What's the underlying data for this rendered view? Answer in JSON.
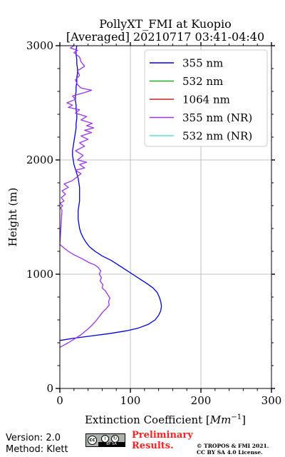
{
  "chart_data": {
    "type": "line",
    "title": "PollyXT_FMI at Kuopio",
    "subtitle": "[Averaged] 20210717 03:41-04:40",
    "xlabel_prefix": "Extinction Coefficient [",
    "xlabel_unit": "Mm",
    "xlabel_exponent": "−1",
    "xlabel_suffix": "]",
    "ylabel": "Height (m)",
    "xlim": [
      0,
      300
    ],
    "ylim": [
      0,
      3000
    ],
    "xticks": [
      0,
      100,
      200,
      300
    ],
    "yticks": [
      0,
      1000,
      2000,
      3000
    ],
    "grid": true,
    "legend_position": "top-right",
    "series": [
      {
        "name": "355 nm",
        "color": "#0000dd",
        "points": [
          [
            0,
            420
          ],
          [
            20,
            440
          ],
          [
            45,
            460
          ],
          [
            70,
            480
          ],
          [
            95,
            505
          ],
          [
            112,
            530
          ],
          [
            125,
            560
          ],
          [
            135,
            600
          ],
          [
            140,
            640
          ],
          [
            143,
            680
          ],
          [
            144,
            720
          ],
          [
            143,
            760
          ],
          [
            141,
            800
          ],
          [
            138,
            840
          ],
          [
            132,
            880
          ],
          [
            123,
            920
          ],
          [
            113,
            960
          ],
          [
            103,
            1000
          ],
          [
            93,
            1040
          ],
          [
            83,
            1080
          ],
          [
            73,
            1120
          ],
          [
            60,
            1160
          ],
          [
            50,
            1200
          ],
          [
            42,
            1240
          ],
          [
            37,
            1280
          ],
          [
            33,
            1320
          ],
          [
            30,
            1360
          ],
          [
            28,
            1400
          ],
          [
            27,
            1440
          ],
          [
            26,
            1480
          ],
          [
            26,
            1520
          ],
          [
            26,
            1560
          ],
          [
            27,
            1600
          ],
          [
            28,
            1640
          ],
          [
            28,
            1680
          ],
          [
            28,
            1720
          ],
          [
            28,
            1760
          ],
          [
            27,
            1800
          ],
          [
            26,
            1840
          ],
          [
            24,
            1880
          ],
          [
            22,
            1920
          ],
          [
            20,
            1960
          ],
          [
            19,
            2000
          ],
          [
            18,
            2040
          ],
          [
            18,
            2080
          ],
          [
            19,
            2120
          ],
          [
            20,
            2160
          ],
          [
            21,
            2200
          ],
          [
            22,
            2240
          ],
          [
            23,
            2280
          ],
          [
            23,
            2320
          ],
          [
            24,
            2360
          ],
          [
            24,
            2400
          ],
          [
            23,
            2440
          ],
          [
            23,
            2480
          ],
          [
            22,
            2520
          ],
          [
            22,
            2560
          ],
          [
            23,
            2600
          ],
          [
            23,
            2640
          ],
          [
            24,
            2680
          ],
          [
            24,
            2720
          ],
          [
            25,
            2760
          ],
          [
            25,
            2800
          ],
          [
            24,
            2840
          ],
          [
            24,
            2880
          ],
          [
            23,
            2920
          ],
          [
            23,
            2960
          ],
          [
            24,
            3000
          ]
        ]
      },
      {
        "name": "532 nm",
        "color": "#22aa22",
        "points": []
      },
      {
        "name": "1064 nm",
        "color": "#cc2222",
        "points": []
      },
      {
        "name": "355 nm (NR)",
        "color": "#9933ee",
        "points": [
          [
            0,
            360
          ],
          [
            6,
            380
          ],
          [
            12,
            400
          ],
          [
            20,
            430
          ],
          [
            30,
            470
          ],
          [
            38,
            510
          ],
          [
            45,
            550
          ],
          [
            51,
            590
          ],
          [
            56,
            630
          ],
          [
            61,
            670
          ],
          [
            66,
            700
          ],
          [
            70,
            730
          ],
          [
            69,
            760
          ],
          [
            71,
            790
          ],
          [
            68,
            820
          ],
          [
            65,
            850
          ],
          [
            60,
            880
          ],
          [
            61,
            910
          ],
          [
            57,
            940
          ],
          [
            59,
            970
          ],
          [
            56,
            1000
          ],
          [
            58,
            1030
          ],
          [
            54,
            1060
          ],
          [
            50,
            1080
          ],
          [
            42,
            1100
          ],
          [
            30,
            1140
          ],
          [
            20,
            1170
          ],
          [
            12,
            1200
          ],
          [
            6,
            1230
          ],
          [
            2,
            1250
          ],
          [
            0,
            1260
          ],
          [
            3,
            1560
          ],
          [
            1,
            1580
          ],
          [
            4,
            1600
          ],
          [
            0,
            1620
          ],
          [
            6,
            1640
          ],
          [
            2,
            1670
          ],
          [
            8,
            1700
          ],
          [
            3,
            1730
          ],
          [
            12,
            1760
          ],
          [
            6,
            1790
          ],
          [
            18,
            1820
          ],
          [
            24,
            1850
          ],
          [
            30,
            1880
          ],
          [
            22,
            1910
          ],
          [
            35,
            1930
          ],
          [
            28,
            1960
          ],
          [
            38,
            1980
          ],
          [
            25,
            2000
          ],
          [
            33,
            2040
          ],
          [
            22,
            2080
          ],
          [
            35,
            2120
          ],
          [
            28,
            2150
          ],
          [
            40,
            2180
          ],
          [
            30,
            2210
          ],
          [
            45,
            2240
          ],
          [
            35,
            2260
          ],
          [
            48,
            2280
          ],
          [
            38,
            2300
          ],
          [
            46,
            2320
          ],
          [
            30,
            2350
          ],
          [
            38,
            2380
          ],
          [
            22,
            2410
          ],
          [
            28,
            2440
          ],
          [
            12,
            2460
          ],
          [
            18,
            2480
          ],
          [
            10,
            2500
          ],
          [
            22,
            2530
          ],
          [
            18,
            2560
          ],
          [
            35,
            2590
          ],
          [
            45,
            2610
          ],
          [
            30,
            2630
          ],
          [
            25,
            2660
          ],
          [
            22,
            2700
          ],
          [
            28,
            2740
          ],
          [
            25,
            2780
          ],
          [
            35,
            2820
          ],
          [
            30,
            2860
          ],
          [
            28,
            2900
          ],
          [
            20,
            2940
          ],
          [
            25,
            2960
          ],
          [
            15,
            2980
          ],
          [
            20,
            3000
          ]
        ]
      },
      {
        "name": "532 nm (NR)",
        "color": "#55e8cc",
        "points": []
      }
    ]
  },
  "footer": {
    "version": "Version: 2.0",
    "method": "Method: Klett",
    "license_badge": "BY  SA",
    "preliminary_line1": "Preliminary",
    "preliminary_line2": "Results.",
    "copyright_line1": "© TROPOS & FMI 2021.",
    "copyright_line2": "CC BY SA 4.0 License."
  }
}
